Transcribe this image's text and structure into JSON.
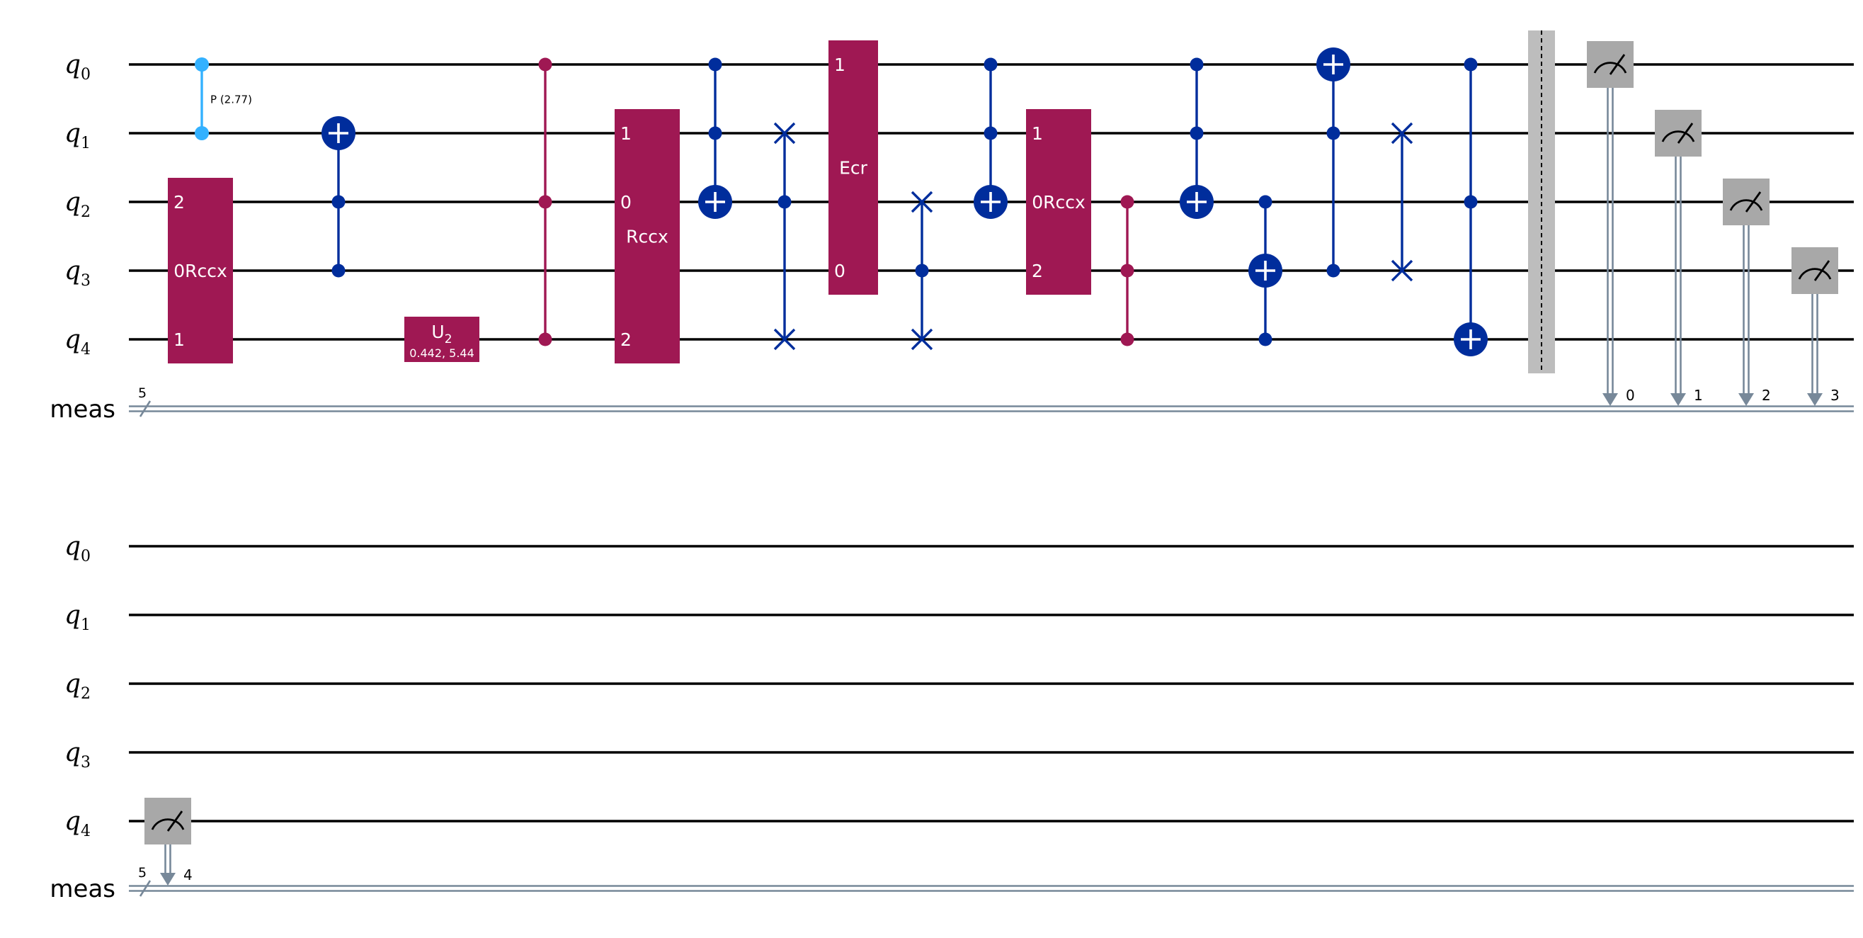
{
  "colors": {
    "wire": "#000000",
    "classical_wire": "#778899",
    "control_blue": "#002d9c",
    "phase_light_blue": "#33b1ff",
    "multi_qubit_gate": "#9f1853",
    "measure_box": "#a8a8a8",
    "barrier": "#bdbdbd",
    "gate_text": "#ffffff"
  },
  "registers": {
    "qubits": [
      {
        "main": "q",
        "sub": "0"
      },
      {
        "main": "q",
        "sub": "1"
      },
      {
        "main": "q",
        "sub": "2"
      },
      {
        "main": "q",
        "sub": "3"
      },
      {
        "main": "q",
        "sub": "4"
      }
    ],
    "classical": {
      "label": "meas",
      "size": "5"
    }
  },
  "panels": [
    {
      "id": "panel-1",
      "gates": [
        {
          "type": "cphase",
          "qubits": [
            0,
            1
          ],
          "label": "P (2.77)"
        },
        {
          "type": "box",
          "name": "Rccx",
          "qubits": [
            2,
            3,
            4
          ],
          "label": "0Rccx",
          "pins": [
            {
              "q": 2,
              "t": "2"
            },
            {
              "q": 4,
              "t": "1"
            }
          ]
        },
        {
          "type": "ccx",
          "controls": [
            2,
            3
          ],
          "target": 1
        },
        {
          "type": "u2",
          "qubit": 4,
          "label": "U",
          "sub": "2",
          "params": "0.442, 5.44"
        },
        {
          "type": "ccz",
          "qubits": [
            0,
            2,
            4
          ]
        },
        {
          "type": "box",
          "name": "Rccx",
          "qubits": [
            1,
            2,
            3,
            4
          ],
          "label": "Rccx",
          "pins": [
            {
              "q": 1,
              "t": "1"
            },
            {
              "q": 2,
              "t": "0"
            },
            {
              "q": 4,
              "t": "2"
            }
          ]
        },
        {
          "type": "ccx",
          "controls": [
            0,
            1
          ],
          "target": 2
        },
        {
          "type": "cswap",
          "control": 2,
          "swaps": [
            1,
            4
          ]
        },
        {
          "type": "box",
          "name": "Ecr",
          "qubits": [
            0,
            1,
            2,
            3
          ],
          "label": "Ecr",
          "pins": [
            {
              "q": 0,
              "t": "1"
            },
            {
              "q": 3,
              "t": "0"
            }
          ]
        },
        {
          "type": "cswap",
          "control": 3,
          "swaps": [
            2,
            4
          ]
        },
        {
          "type": "ccx",
          "controls": [
            0,
            1
          ],
          "target": 2
        },
        {
          "type": "box",
          "name": "Rccx",
          "qubits": [
            1,
            2,
            3
          ],
          "label": "0Rccx",
          "pins": [
            {
              "q": 1,
              "t": "1"
            },
            {
              "q": 3,
              "t": "2"
            }
          ]
        },
        {
          "type": "ccz",
          "qubits": [
            2,
            3,
            4
          ]
        },
        {
          "type": "ccx",
          "controls": [
            0,
            1
          ],
          "target": 2
        },
        {
          "type": "cx",
          "controls": [
            2,
            4
          ],
          "target": 3
        },
        {
          "type": "ccx",
          "controls": [
            1,
            3
          ],
          "target": 0
        },
        {
          "type": "swap",
          "qubits": [
            1,
            3
          ]
        },
        {
          "type": "ccx",
          "controls": [
            0,
            2
          ],
          "target": 4
        },
        {
          "type": "barrier",
          "qubits": [
            0,
            1,
            2,
            3,
            4
          ]
        },
        {
          "type": "measure",
          "qubit": 0,
          "bit": "0"
        },
        {
          "type": "measure",
          "qubit": 1,
          "bit": "1"
        },
        {
          "type": "measure",
          "qubit": 2,
          "bit": "2"
        },
        {
          "type": "measure",
          "qubit": 3,
          "bit": "3"
        }
      ]
    },
    {
      "id": "panel-2",
      "gates": [
        {
          "type": "measure",
          "qubit": 4,
          "bit": "4"
        }
      ]
    }
  ]
}
